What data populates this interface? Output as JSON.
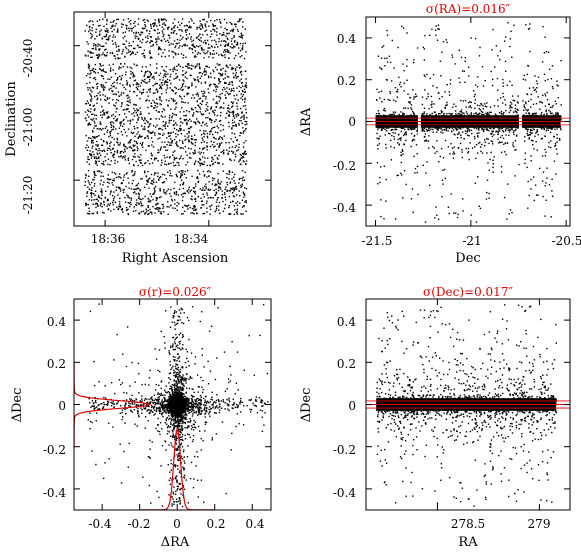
{
  "colors": {
    "points": "#000000",
    "highlight": "#e00000",
    "background": "#ffffff"
  },
  "chart_data": [
    {
      "id": "sky",
      "type": "scatter",
      "title": "",
      "xlabel": "Right Ascension",
      "ylabel": "Declination",
      "x_ticks": [
        {
          "label": "18:36",
          "value": 279.0
        },
        {
          "label": "18:34",
          "value": 278.5
        }
      ],
      "y_ticks": [
        {
          "label": "-20:40",
          "value": -20.667
        },
        {
          "label": "-21:00",
          "value": -21.0
        },
        {
          "label": "-21:20",
          "value": -21.333
        }
      ],
      "xlim": [
        279.15,
        278.2
      ],
      "ylim": [
        -21.56,
        -20.5
      ],
      "data_extent": {
        "ra": [
          278.32,
          279.1
        ],
        "dec": [
          -21.5,
          -20.53
        ]
      },
      "gaps_dec": [
        -21.27,
        -20.74
      ],
      "n_points": 3000
    },
    {
      "id": "dra-vs-dec",
      "type": "scatter",
      "title": "σ(RA)=0.016″",
      "xlabel": "Dec",
      "ylabel": "ΔRA",
      "x_ticks": [
        {
          "label": "-21.5",
          "value": -21.5
        },
        {
          "label": "-21",
          "value": -21.0
        },
        {
          "label": "-20.5",
          "value": -20.5
        }
      ],
      "y_ticks": [
        {
          "label": "-0.4",
          "value": -0.4
        },
        {
          "label": "-0.2",
          "value": -0.2
        },
        {
          "label": "0",
          "value": 0
        },
        {
          "label": "0.2",
          "value": 0.2
        },
        {
          "label": "0.4",
          "value": 0.4
        }
      ],
      "xlim": [
        -21.55,
        -20.48
      ],
      "ylim": [
        -0.5,
        0.5
      ],
      "sigma": 0.016,
      "gaps_dec": [
        -21.27,
        -20.74
      ],
      "reference_lines": [
        0.016,
        -0.016
      ],
      "n_points": 2400
    },
    {
      "id": "ddec-vs-dra",
      "type": "scatter",
      "title": "σ(r)=0.026″",
      "xlabel": "ΔRA",
      "ylabel": "ΔDec",
      "x_ticks": [
        {
          "label": "-0.4",
          "value": -0.4
        },
        {
          "label": "-0.2",
          "value": -0.2
        },
        {
          "label": "0",
          "value": 0
        },
        {
          "label": "0.2",
          "value": 0.2
        },
        {
          "label": "0.4",
          "value": 0.4
        }
      ],
      "y_ticks": [
        {
          "label": "-0.4",
          "value": -0.4
        },
        {
          "label": "-0.2",
          "value": -0.2
        },
        {
          "label": "0",
          "value": 0
        },
        {
          "label": "0.2",
          "value": 0.2
        },
        {
          "label": "0.4",
          "value": 0.4
        }
      ],
      "xlim": [
        -0.55,
        0.5
      ],
      "ylim": [
        -0.5,
        0.5
      ],
      "sigma": 0.026,
      "histograms": [
        "ΔRA",
        "ΔDec"
      ],
      "n_points": 2600
    },
    {
      "id": "ddec-vs-ra",
      "type": "scatter",
      "title": "σ(Dec)=0.017″",
      "xlabel": "RA",
      "ylabel": "ΔDec",
      "x_ticks": [
        {
          "label": "278.5",
          "value": 278.5
        },
        {
          "label": "279",
          "value": 279.0
        }
      ],
      "y_ticks": [
        {
          "label": "-0.4",
          "value": -0.4
        },
        {
          "label": "-0.2",
          "value": -0.2
        },
        {
          "label": "0",
          "value": 0
        },
        {
          "label": "0.2",
          "value": 0.2
        },
        {
          "label": "0.4",
          "value": 0.4
        }
      ],
      "xlim": [
        278.15,
        279.15
      ],
      "ylim": [
        -0.5,
        0.5
      ],
      "sigma": 0.017,
      "reference_lines": [
        0.017,
        -0.017
      ],
      "n_points": 2400
    }
  ]
}
